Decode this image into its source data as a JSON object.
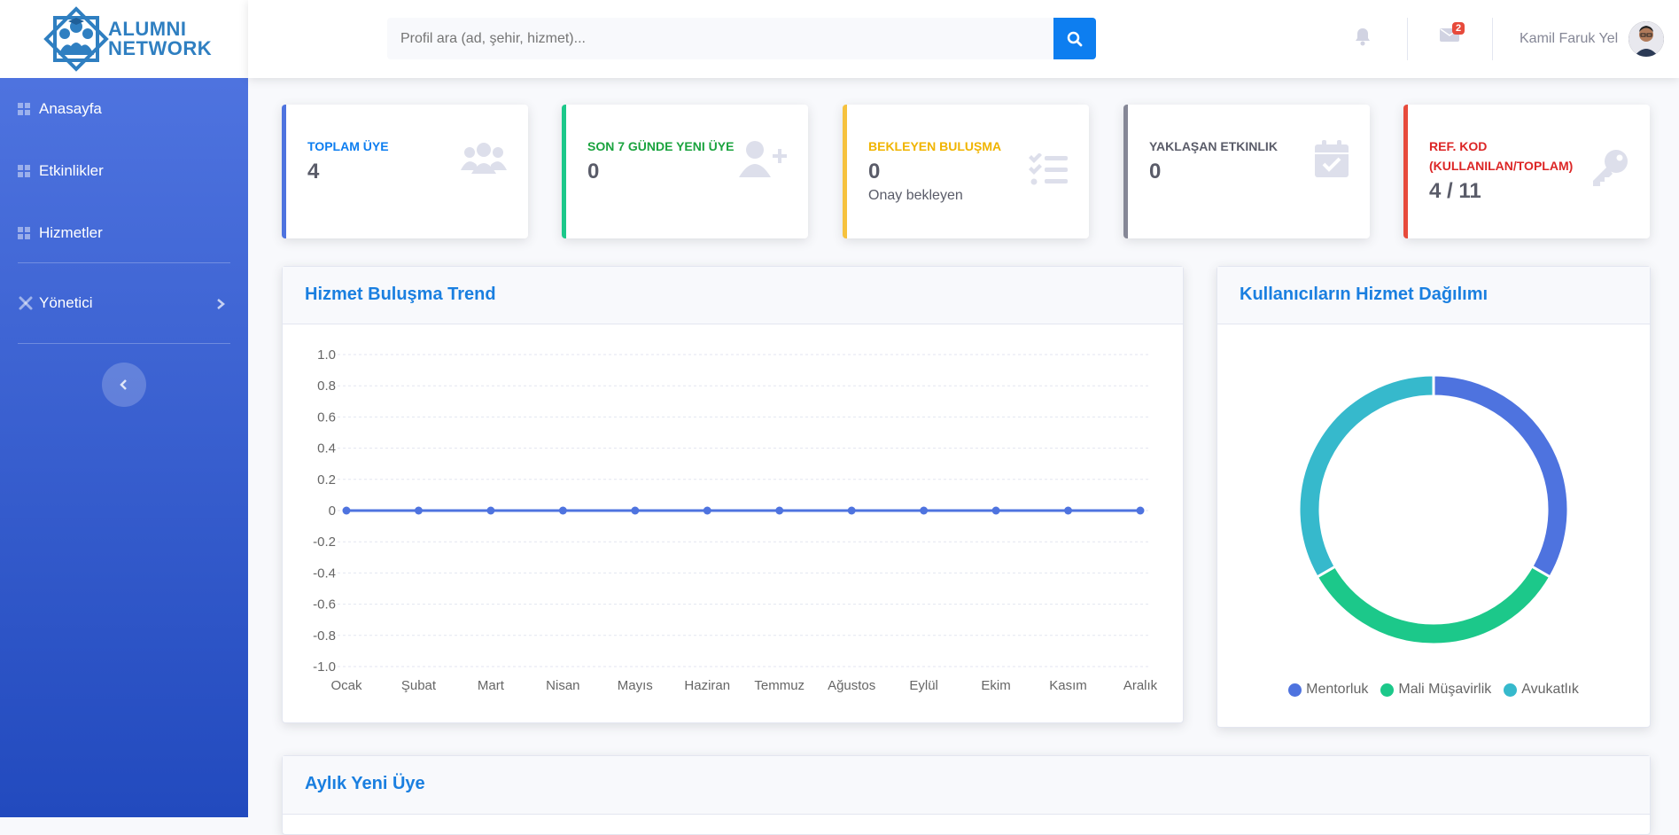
{
  "brand": {
    "line1": "ALUMNI",
    "line2": "NETWORK",
    "color": "#2f7fc1"
  },
  "sidebar": {
    "items": [
      {
        "label": "Anasayfa",
        "icon": "grid-icon"
      },
      {
        "label": "Etkinlikler",
        "icon": "grid-icon"
      },
      {
        "label": "Hizmetler",
        "icon": "grid-icon"
      }
    ],
    "admin": {
      "label": "Yönetici",
      "icon": "tools-icon"
    },
    "toggle_icon": "chevron-left-icon"
  },
  "topbar": {
    "search_placeholder": "Profil ara (ad, şehir, hizmet)...",
    "message_count": "2",
    "user_name": "Kamil Faruk Yel"
  },
  "cards": [
    {
      "title": "TOPLAM ÜYE",
      "value": "4",
      "sub": "",
      "color": "#4e73df",
      "titleColor": "#0d7ef0",
      "icon": "users-icon"
    },
    {
      "title": "SON 7 GÜNDE YENI ÜYE",
      "value": "0",
      "sub": "",
      "color": "#1cc88a",
      "titleColor": "#1aa33e",
      "icon": "user-plus-icon"
    },
    {
      "title": "BEKLEYEN BULUŞMA",
      "value": "0",
      "sub": "Onay bekleyen",
      "color": "#f6c23e",
      "titleColor": "#f0b400",
      "icon": "list-check-icon"
    },
    {
      "title": "YAKLAŞAN ETKINLIK",
      "value": "0",
      "sub": "",
      "color": "#858796",
      "titleColor": "#5a5c69",
      "icon": "calendar-check-icon"
    },
    {
      "title": "REF. KOD (KULLANILAN/TOPLAM)",
      "value": "4 / 11",
      "sub": "",
      "color": "#e74a3b",
      "titleColor": "#dc2626",
      "icon": "key-icon"
    }
  ],
  "trend": {
    "title": "Hizmet Buluşma Trend"
  },
  "distribution": {
    "title": "Kullanıcıların Hizmet Dağılımı"
  },
  "monthly": {
    "title": "Aylık Yeni Üye"
  },
  "chart_data": [
    {
      "type": "line",
      "title": "",
      "categories": [
        "Ocak",
        "Şubat",
        "Mart",
        "Nisan",
        "Mayıs",
        "Haziran",
        "Temmuz",
        "Ağustos",
        "Eylül",
        "Ekim",
        "Kasım",
        "Aralık"
      ],
      "values": [
        0,
        0,
        0,
        0,
        0,
        0,
        0,
        0,
        0,
        0,
        0,
        0
      ],
      "ylim": [
        -1,
        1
      ],
      "yticks": [
        "1.0",
        "0.8",
        "0.6",
        "0.4",
        "0.2",
        "0",
        "-0.2",
        "-0.4",
        "-0.6",
        "-0.8",
        "-1.0"
      ],
      "color": "#4e73df",
      "grid": true
    },
    {
      "type": "pie",
      "title": "",
      "donut": true,
      "labels": [
        "Mentorluk",
        "Mali Müşavirlik",
        "Avukatlık"
      ],
      "values": [
        1,
        1,
        1
      ],
      "colors": [
        "#4e73df",
        "#1cc88a",
        "#36b9cc"
      ],
      "legend": "bottom"
    }
  ]
}
